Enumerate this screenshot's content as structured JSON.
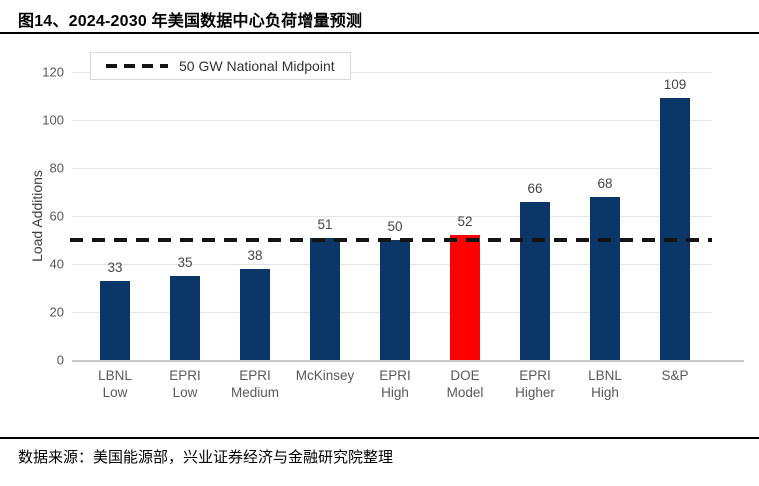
{
  "header": {
    "title": "图14、2024-2030 年美国数据中心负荷增量预测"
  },
  "footer": {
    "source": "数据来源：美国能源部，兴业证券经济与金融研究院整理"
  },
  "chart_data": {
    "type": "bar",
    "title": "2024-2030 年美国数据中心负荷增量预测",
    "categories": [
      "LBNL\nLow",
      "EPRI\nLow",
      "EPRI\nMedium",
      "McKinsey",
      "EPRI\nHigh",
      "DOE\nModel",
      "EPRI\nHigher",
      "LBNL\nHigh",
      "S&P"
    ],
    "values": [
      33,
      35,
      38,
      51,
      50,
      52,
      66,
      68,
      109
    ],
    "xlabel": "",
    "ylabel": "Load Additions",
    "ylim": [
      0,
      120
    ],
    "ytick_step": 20,
    "grid": true,
    "legend": {
      "label": "50 GW National Midpoint",
      "position": "top-left"
    },
    "reference_line": {
      "value": 50,
      "style": "dashed",
      "color": "#141414"
    },
    "colors": {
      "bar": "#0a3768",
      "highlight": "#ff0000",
      "gridline": "#e4e4e4"
    },
    "highlight_index": 5
  }
}
